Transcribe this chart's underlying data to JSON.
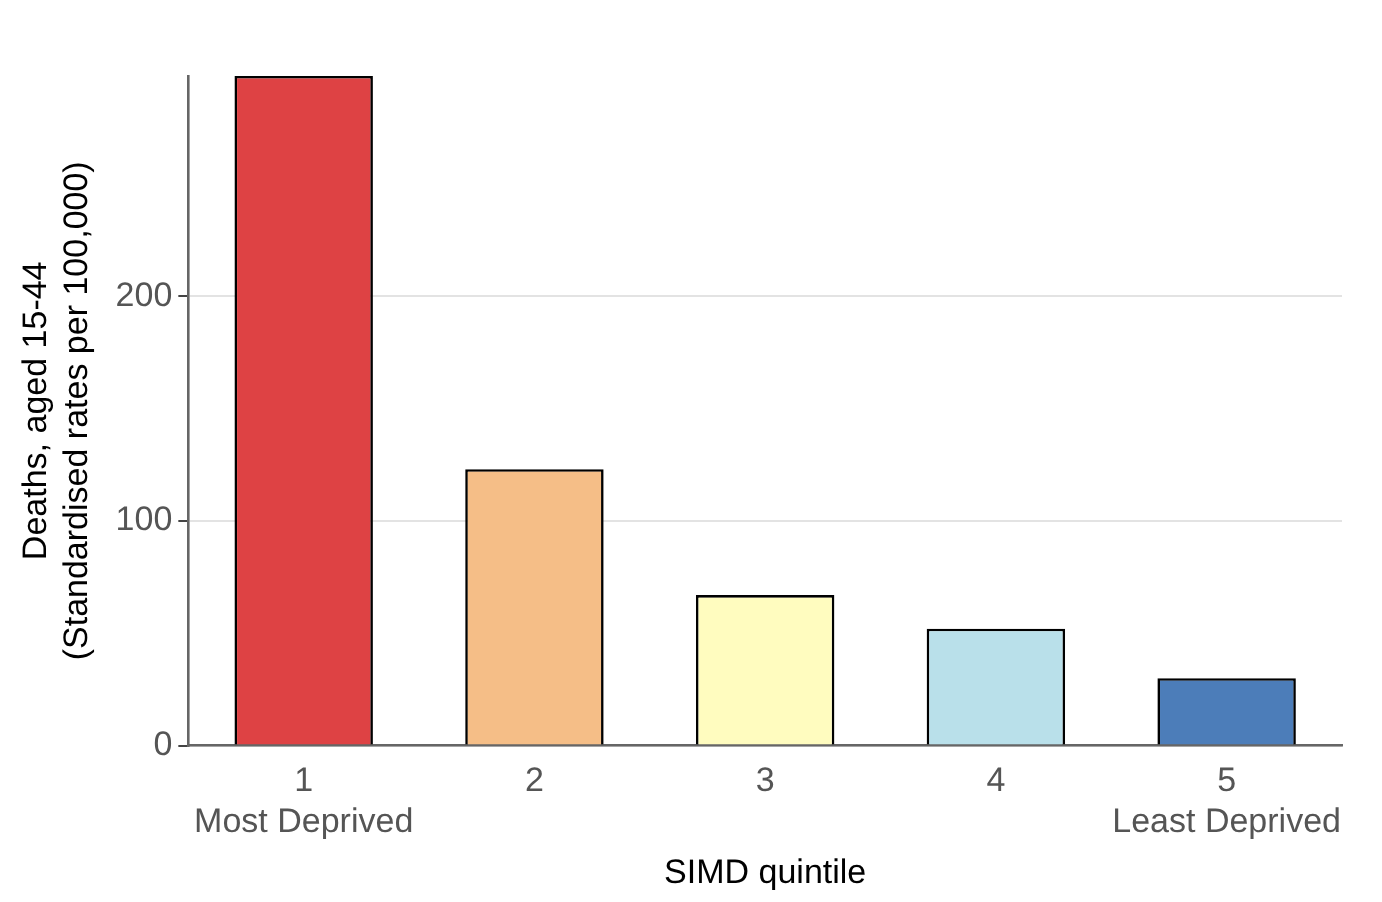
{
  "chart_data": {
    "type": "bar",
    "xlabel": "SIMD quintile",
    "ylabel": "Deaths, aged 15-44\n(Standardised rates per 100,000)",
    "categories": [
      "1\nMost Deprived",
      "2",
      "3",
      "4",
      "5\nLeast Deprived"
    ],
    "values": [
      298,
      123,
      67,
      52,
      30
    ],
    "colors": [
      "#de4244",
      "#f5be87",
      "#fffcbf",
      "#b9e0ea",
      "#4c7db9"
    ],
    "ylim": [
      0,
      298
    ],
    "yticks": [
      0,
      100,
      200
    ],
    "grid": "y",
    "legend": false
  }
}
